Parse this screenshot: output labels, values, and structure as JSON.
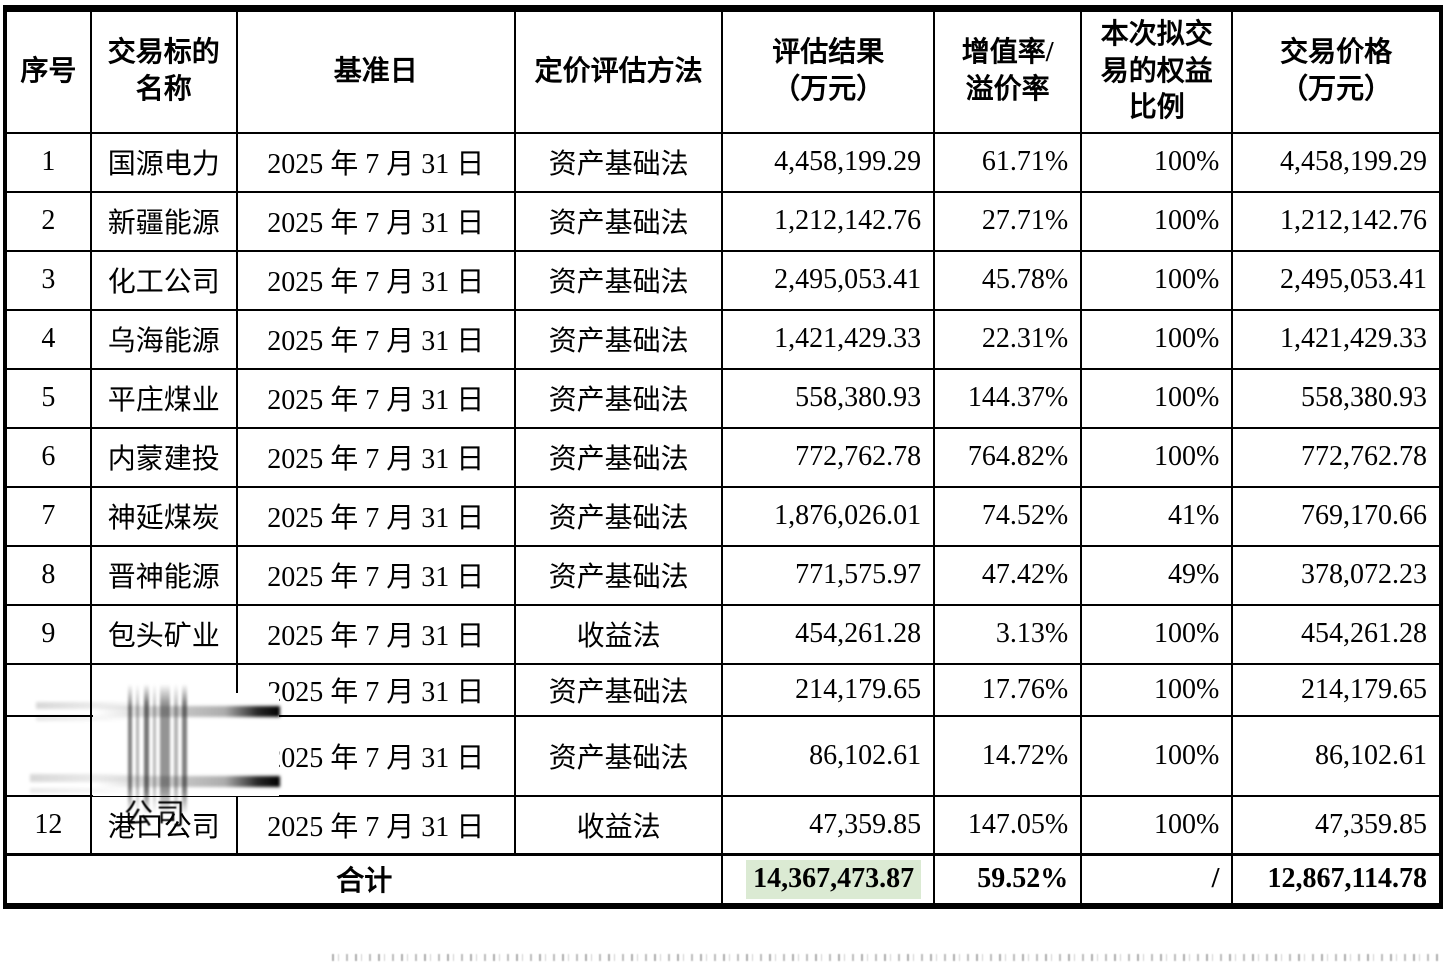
{
  "table": {
    "columns": [
      {
        "key": "seq",
        "label": "序号"
      },
      {
        "key": "name",
        "label": "交易标的\n名称"
      },
      {
        "key": "date",
        "label": "基准日"
      },
      {
        "key": "method",
        "label": "定价评估方法"
      },
      {
        "key": "result",
        "label": "评估结果\n（万元）"
      },
      {
        "key": "rate",
        "label": "增值率/\n溢价率"
      },
      {
        "key": "ratio",
        "label": "本次拟交\n易的权益\n比例"
      },
      {
        "key": "price",
        "label": "交易价格\n（万元）"
      }
    ],
    "rows": [
      {
        "seq": "1",
        "name": "国源电力",
        "date": "2025 年 7 月 31 日",
        "method": "资产基础法",
        "result": "4,458,199.29",
        "rate": "61.71%",
        "ratio": "100%",
        "price": "4,458,199.29",
        "redacted": false
      },
      {
        "seq": "2",
        "name": "新疆能源",
        "date": "2025 年 7 月 31 日",
        "method": "资产基础法",
        "result": "1,212,142.76",
        "rate": "27.71%",
        "ratio": "100%",
        "price": "1,212,142.76",
        "redacted": false
      },
      {
        "seq": "3",
        "name": "化工公司",
        "date": "2025 年 7 月 31 日",
        "method": "资产基础法",
        "result": "2,495,053.41",
        "rate": "45.78%",
        "ratio": "100%",
        "price": "2,495,053.41",
        "redacted": false
      },
      {
        "seq": "4",
        "name": "乌海能源",
        "date": "2025 年 7 月 31 日",
        "method": "资产基础法",
        "result": "1,421,429.33",
        "rate": "22.31%",
        "ratio": "100%",
        "price": "1,421,429.33",
        "redacted": false
      },
      {
        "seq": "5",
        "name": "平庄煤业",
        "date": "2025 年 7 月 31 日",
        "method": "资产基础法",
        "result": "558,380.93",
        "rate": "144.37%",
        "ratio": "100%",
        "price": "558,380.93",
        "redacted": false
      },
      {
        "seq": "6",
        "name": "内蒙建投",
        "date": "2025 年 7 月 31 日",
        "method": "资产基础法",
        "result": "772,762.78",
        "rate": "764.82%",
        "ratio": "100%",
        "price": "772,762.78",
        "redacted": false
      },
      {
        "seq": "7",
        "name": "神延煤炭",
        "date": "2025 年 7 月 31 日",
        "method": "资产基础法",
        "result": "1,876,026.01",
        "rate": "74.52%",
        "ratio": "41%",
        "price": "769,170.66",
        "redacted": false
      },
      {
        "seq": "8",
        "name": "晋神能源",
        "date": "2025 年 7 月 31 日",
        "method": "资产基础法",
        "result": "771,575.97",
        "rate": "47.42%",
        "ratio": "49%",
        "price": "378,072.23",
        "redacted": false
      },
      {
        "seq": "9",
        "name": "包头矿业",
        "date": "2025 年 7 月 31 日",
        "method": "收益法",
        "result": "454,261.28",
        "rate": "3.13%",
        "ratio": "100%",
        "price": "454,261.28",
        "redacted": false
      },
      {
        "seq": "",
        "name": "",
        "date": "2025 年 7 月 31 日",
        "method": "资产基础法",
        "result": "214,179.65",
        "rate": "17.76%",
        "ratio": "100%",
        "price": "214,179.65",
        "redacted": true
      },
      {
        "seq": "",
        "name": "",
        "date": "2025 年 7 月 31 日",
        "method": "资产基础法",
        "result": "86,102.61",
        "rate": "14.72%",
        "ratio": "100%",
        "price": "86,102.61",
        "redacted": true
      },
      {
        "seq": "12",
        "name": "港口公司",
        "date": "2025 年 7 月 31 日",
        "method": "收益法",
        "result": "47,359.85",
        "rate": "147.05%",
        "ratio": "100%",
        "price": "47,359.85",
        "redacted": false
      }
    ],
    "total": {
      "label": "合计",
      "result": "14,367,473.87",
      "rate": "59.52%",
      "ratio": "/",
      "price": "12,867,114.78",
      "result_highlight_color": "#dbead3"
    }
  },
  "redaction": {
    "visible_text": "公司"
  },
  "colors": {
    "border": "#000000",
    "background": "#ffffff",
    "text": "#000000",
    "total_result_highlight": "#dbead3"
  }
}
